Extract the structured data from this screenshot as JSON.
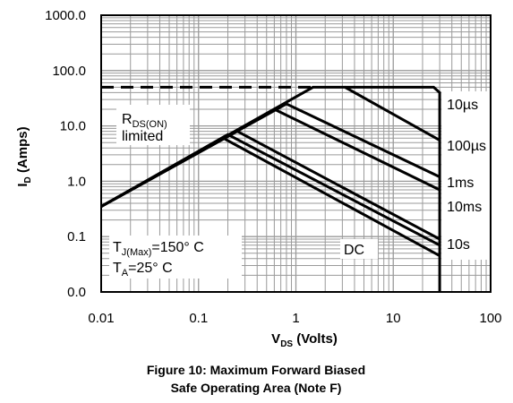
{
  "chart_data": {
    "type": "line",
    "title": "",
    "xlabel": {
      "main": "V",
      "sub": "DS",
      "rest": " (Volts)"
    },
    "ylabel": {
      "main": "I",
      "sub": "D",
      "rest": " (Amps)"
    },
    "x_scale": "log",
    "y_scale": "log",
    "xlim": [
      0.01,
      100
    ],
    "ylim": [
      0.01,
      1000
    ],
    "x_ticks": [
      {
        "value": 0.01,
        "label": "0.01"
      },
      {
        "value": 0.1,
        "label": "0.1"
      },
      {
        "value": 1,
        "label": "1"
      },
      {
        "value": 10,
        "label": "10"
      },
      {
        "value": 100,
        "label": "100"
      }
    ],
    "y_ticks": [
      {
        "value": 0.01,
        "label": "0.0"
      },
      {
        "value": 0.1,
        "label": "0.1"
      },
      {
        "value": 1,
        "label": "1.0"
      },
      {
        "value": 10,
        "label": "10.0"
      },
      {
        "value": 100,
        "label": "100.0"
      },
      {
        "value": 1000,
        "label": "1000.0"
      }
    ],
    "grid": true,
    "legend": "none",
    "series": [
      {
        "name": "10µs",
        "label_main": "10",
        "label_unit": "µs",
        "x": [
          0.01,
          1.5,
          3.2,
          30
        ],
        "y": [
          0.35,
          50,
          50,
          5.5
        ]
      },
      {
        "name": "100µs",
        "label_main": "100",
        "label_unit": "µs",
        "x": [
          0.01,
          0.8,
          30
        ],
        "y": [
          0.35,
          25,
          1.2
        ]
      },
      {
        "name": "1ms",
        "x": [
          0.01,
          0.6,
          30
        ],
        "y": [
          0.35,
          20,
          0.7
        ]
      },
      {
        "name": "10ms",
        "x": [
          0.01,
          0.25,
          30
        ],
        "y": [
          0.35,
          8,
          0.09
        ]
      },
      {
        "name": "10s",
        "x": [
          0.01,
          0.2,
          30
        ],
        "y": [
          0.35,
          7,
          0.07
        ]
      },
      {
        "name": "DC",
        "x": [
          0.01,
          0.18,
          30
        ],
        "y": [
          0.35,
          6,
          0.045
        ]
      }
    ],
    "boundary": {
      "x": [
        3.2,
        26,
        30,
        30
      ],
      "y": [
        50,
        50,
        40,
        0.01
      ]
    },
    "current_limit": {
      "y": 50,
      "x": [
        0.01,
        1.5
      ]
    },
    "annotations": {
      "rds": {
        "main": "R",
        "sub": "DS(ON)",
        "line2": "limited"
      },
      "tj": {
        "main": "T",
        "sub": "J(Max)",
        "rest": "=150° C"
      },
      "ta": {
        "main": "T",
        "sub": "A",
        "rest": "=25° C"
      }
    }
  },
  "caption": {
    "line1": "Figure 10: Maximum Forward Biased",
    "line2": "Safe Operating Area (Note F)"
  }
}
